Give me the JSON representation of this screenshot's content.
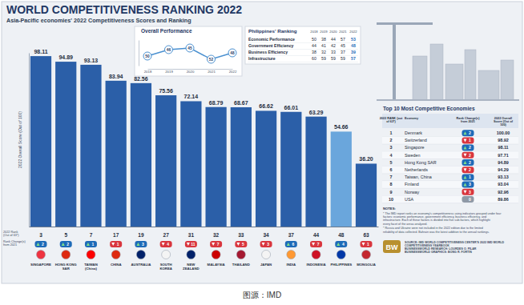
{
  "title": "WORLD COMPETITIVENESS RANKING 2022",
  "subtitle": "Asia-Pacific economies' 2022 Competitiveness Scores and Ranking",
  "chart_data": [
    {
      "type": "bar",
      "y_label": "2022 Overall Score (Out of 100)",
      "categories": [
        "SINGAPORE",
        "HONG KONG SAR",
        "TAIWAN (China)",
        "CHINA",
        "AUSTRALIA",
        "SOUTH KOREA",
        "NEW ZEALAND",
        "MALAYSIA",
        "THAILAND",
        "JAPAN",
        "INDIA",
        "INDONESIA",
        "PHILIPPINES",
        "MONGOLIA"
      ],
      "values": [
        98.11,
        94.89,
        93.13,
        83.94,
        82.56,
        75.56,
        72.14,
        68.79,
        68.67,
        66.62,
        66.01,
        63.29,
        54.66,
        36.2
      ],
      "value_labels": [
        "98.11",
        "94.89",
        "93.13",
        "83.94",
        "82.56",
        "75.56",
        "72.14",
        "68.79",
        "68.67",
        "66.62",
        "66.01",
        "63.29",
        "54.66",
        "36.20"
      ],
      "colors": [
        "#2b5fa8",
        "#2b5fa8",
        "#2b5fa8",
        "#2b5fa8",
        "#2b5fa8",
        "#2b5fa8",
        "#2b5fa8",
        "#2b5fa8",
        "#2b5fa8",
        "#2b5fa8",
        "#2b5fa8",
        "#2b5fa8",
        "#6aa6dc",
        "#2b5fa8"
      ],
      "ylim": [
        0,
        100
      ],
      "data_labels": true,
      "tick_labels": "x",
      "rank_label": "2022 Rank (Out of 63*)",
      "ranks": [
        3,
        5,
        7,
        17,
        19,
        27,
        31,
        32,
        33,
        34,
        37,
        44,
        48,
        63
      ],
      "rank_change_label": "Rank Change(s) from 2021",
      "rank_change": [
        2,
        2,
        1,
        -1,
        3,
        -4,
        -11,
        -7,
        -5,
        -3,
        6,
        -7,
        4,
        -1
      ],
      "rank_change_labels": [
        "2",
        "2",
        "1",
        "1",
        "3",
        "4",
        "11",
        "7",
        "5",
        "3",
        "6",
        "7",
        "4",
        "1"
      ]
    },
    {
      "type": "line",
      "title": "Overall Performance",
      "categories": [
        "2018",
        "2019",
        "2020",
        "2021",
        "2022"
      ],
      "values": [
        50,
        46,
        45,
        52,
        48
      ],
      "ylim": [
        56,
        40
      ],
      "color": "#4a90d0",
      "marker": "circle",
      "data_labels": true,
      "tick_labels": "x"
    }
  ],
  "tables": [
    {
      "title": "Philippines' Ranking",
      "columns": [
        "2018",
        "2019",
        "2020",
        "2021",
        "2022"
      ],
      "rows": [
        {
          "label": "Economic Performance",
          "values": [
            50,
            38,
            44,
            57,
            53
          ]
        },
        {
          "label": "Government Efficiency",
          "values": [
            44,
            41,
            42,
            45,
            48
          ]
        },
        {
          "label": "Business Efficiency",
          "values": [
            38,
            32,
            33,
            37,
            39
          ]
        },
        {
          "label": "Infrastructure",
          "values": [
            60,
            59,
            59,
            59,
            57
          ]
        }
      ]
    },
    {
      "title": "Top 10 Most Competitive Economies",
      "columns": [
        "2022 RANK (out of 63*)",
        "Economy",
        "Rank Change(s) from 2021",
        "2022 Overall Score (Out of 100)"
      ],
      "rows": [
        {
          "rank": 1,
          "economy": "Denmark",
          "change": 2,
          "change_label": "2",
          "score": 100,
          "score_label": "100.00"
        },
        {
          "rank": 2,
          "economy": "Switzerland",
          "change": -1,
          "change_label": "1",
          "score": 98.92,
          "score_label": "98.92"
        },
        {
          "rank": 3,
          "economy": "Singapore",
          "change": 2,
          "change_label": "2",
          "score": 98.11,
          "score_label": "98.11"
        },
        {
          "rank": 4,
          "economy": "Sweden",
          "change": -2,
          "change_label": "2",
          "score": 97.71,
          "score_label": "97.71"
        },
        {
          "rank": 5,
          "economy": "Hong Kong SAR",
          "change": 2,
          "change_label": "2",
          "score": 94.89,
          "score_label": "94.89"
        },
        {
          "rank": 6,
          "economy": "Netherlands",
          "change": -2,
          "change_label": "2",
          "score": 94.29,
          "score_label": "94.29"
        },
        {
          "rank": 7,
          "economy": "Taiwan, China",
          "change": 1,
          "change_label": "1",
          "score": 93.13,
          "score_label": "93.13"
        },
        {
          "rank": 8,
          "economy": "Finland",
          "change": 3,
          "change_label": "3",
          "score": 93.04,
          "score_label": "93.04"
        },
        {
          "rank": 9,
          "economy": "Norway",
          "change": -3,
          "change_label": "3",
          "score": 92.96,
          "score_label": "92.96"
        },
        {
          "rank": 10,
          "economy": "USA",
          "change": 0,
          "change_label": "0",
          "score": 89.86,
          "score_label": "89.86"
        }
      ]
    }
  ],
  "notes_title": "NOTES:",
  "notes": [
    "* The IMD report ranks an economy's competitiveness using indicators grouped under four factors: economic performance, government efficiency, business efficiency, and infrastructure. Each of these factors is divided into five sub-factors, which highlight every facet of the areas analyzed.",
    "* Russia and Ukraine were not included in the 2022 edition due to the limited reliability of data collected. Bahrain was the latest addition to the annual rankings."
  ],
  "logo": "BW",
  "source": [
    "SOURCE: IMD WORLD COMPETITIVENESS CENTER'S 2022 IMD WORLD COMPETITIVENESS YEARBOOK",
    "BUSINESSWORLD RESEARCH: LOURDES O. PILAR",
    "BUSINESSWORLD GRAPHICS: BONG R. FORTIN"
  ],
  "caption": "图源：IMD"
}
